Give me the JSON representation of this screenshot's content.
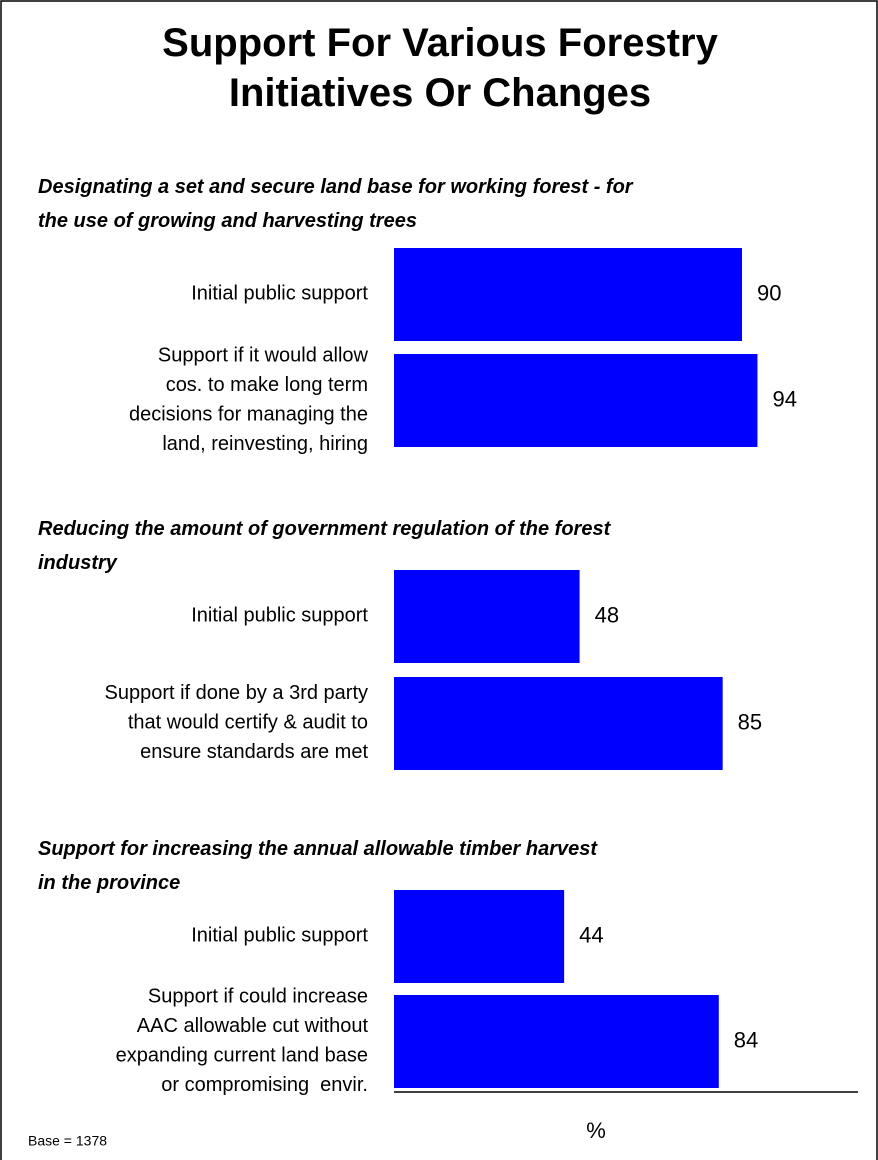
{
  "chart_data": {
    "type": "bar",
    "orientation": "horizontal",
    "title": "Support For Various Forestry\nInitiatives Or Changes",
    "color": "#0000ff",
    "xlim": [
      0,
      120
    ],
    "xlabel": "%",
    "note": "Base = 1378",
    "groups": [
      {
        "heading": "Designating a set and secure land base for working forest - for\nthe use of growing and harvesting trees",
        "categories": [
          "Initial public support",
          "Support if it would allow\ncos. to make long term\ndecisions for managing the\nland, reinvesting, hiring"
        ],
        "values": [
          90,
          94
        ]
      },
      {
        "heading": "Reducing the amount of government regulation of the forest\nindustry",
        "categories": [
          "Initial public support",
          "Support if done by a 3rd party\nthat would certify & audit to\nensure standards are met"
        ],
        "values": [
          48,
          85
        ]
      },
      {
        "heading": "Support for increasing the annual allowable timber harvest\nin the province",
        "categories": [
          "Initial public support",
          "Support if could increase\nAAC allowable cut without\nexpanding current land base\nor compromising  envir."
        ],
        "values": [
          44,
          84
        ]
      }
    ]
  }
}
